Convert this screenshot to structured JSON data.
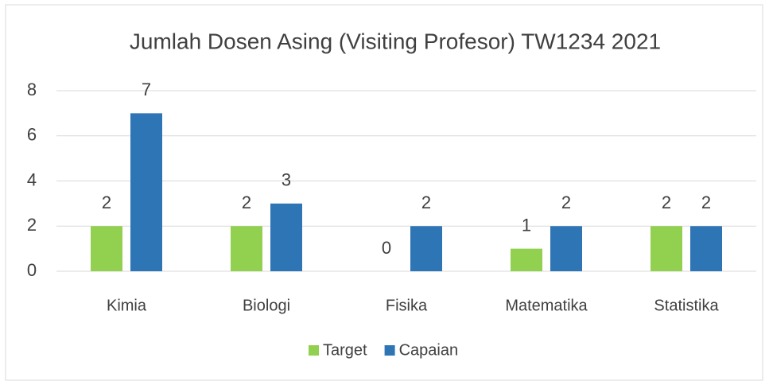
{
  "chart_data": {
    "type": "bar",
    "title": "Jumlah Dosen Asing (Visiting Profesor) TW1234 2021",
    "categories": [
      "Kimia",
      "Biologi",
      "Fisika",
      "Matematika",
      "Statistika"
    ],
    "series": [
      {
        "name": "Target",
        "color": "#92d050",
        "values": [
          2,
          2,
          0,
          1,
          2
        ]
      },
      {
        "name": "Capaian",
        "color": "#2e75b6",
        "values": [
          7,
          3,
          2,
          2,
          2
        ]
      }
    ],
    "ylim": [
      0,
      8
    ],
    "yticks": [
      0,
      2,
      4,
      6,
      8
    ],
    "grid": true,
    "legend": "bottom"
  }
}
